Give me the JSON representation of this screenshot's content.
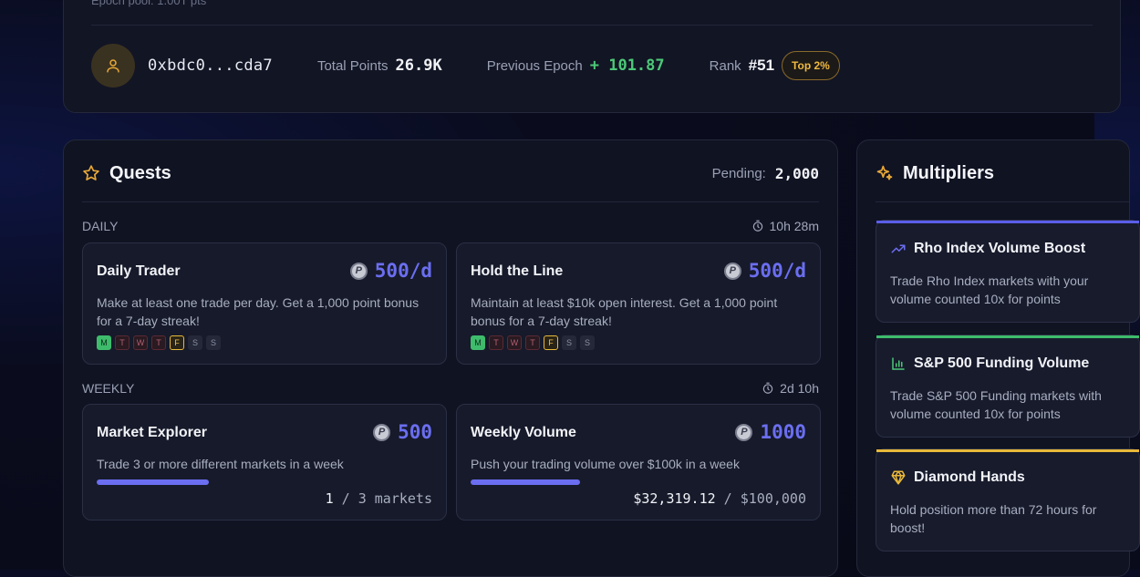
{
  "profile": {
    "epoch_pool": "Epoch pool: 1.00T pts",
    "address": "0xbdc0...cda7",
    "total_points_label": "Total Points",
    "total_points_value": "26.9K",
    "previous_epoch_label": "Previous Epoch",
    "previous_epoch_value": "+ 101.87",
    "rank_label": "Rank",
    "rank_value": "#51",
    "rank_badge": "Top 2%"
  },
  "quests": {
    "title": "Quests",
    "pending_label": "Pending:",
    "pending_value": "2,000",
    "daily": {
      "label": "DAILY",
      "timer": "10h 28m",
      "cards": [
        {
          "title": "Daily Trader",
          "reward": "500/d",
          "description": "Make at least one trade per day. Get a 1,000 point bonus for a 7-day streak!",
          "days": [
            "M",
            "T",
            "W",
            "T",
            "F",
            "S",
            "S"
          ]
        },
        {
          "title": "Hold the Line",
          "reward": "500/d",
          "description": "Maintain at least $10k open interest. Get a 1,000 point bonus for a 7-day streak!",
          "days": [
            "M",
            "T",
            "W",
            "T",
            "F",
            "S",
            "S"
          ]
        }
      ]
    },
    "weekly": {
      "label": "WEEKLY",
      "timer": "2d 10h",
      "cards": [
        {
          "title": "Market Explorer",
          "reward": "500",
          "description": "Trade 3 or more different markets in a week",
          "progress_fraction": 0.333,
          "progress_current": "1",
          "progress_sep": " / ",
          "progress_total": "3 markets"
        },
        {
          "title": "Weekly Volume",
          "reward": "1000",
          "description": "Push your trading volume over $100k in a week",
          "progress_fraction": 0.323,
          "progress_current": "$32,319.12",
          "progress_sep": " / ",
          "progress_total": "$100,000"
        }
      ]
    }
  },
  "multipliers": {
    "title": "Multipliers",
    "cards": [
      {
        "title": "Rho Index Volume Boost",
        "description": "Trade Rho Index markets with your volume counted 10x for points",
        "accent": "#5b5ee8"
      },
      {
        "title": "S&P 500 Funding Volume",
        "description": "Trade S&P 500 Funding markets with volume counted 10x for points",
        "accent": "#3ebc6c"
      },
      {
        "title": "Diamond Hands",
        "description": "Hold position more than 72 hours for boost!",
        "accent": "#e8b83a"
      }
    ]
  },
  "colors": {
    "accent": "#6b6ef0",
    "green": "#4cc878",
    "gold": "#f0b840"
  }
}
